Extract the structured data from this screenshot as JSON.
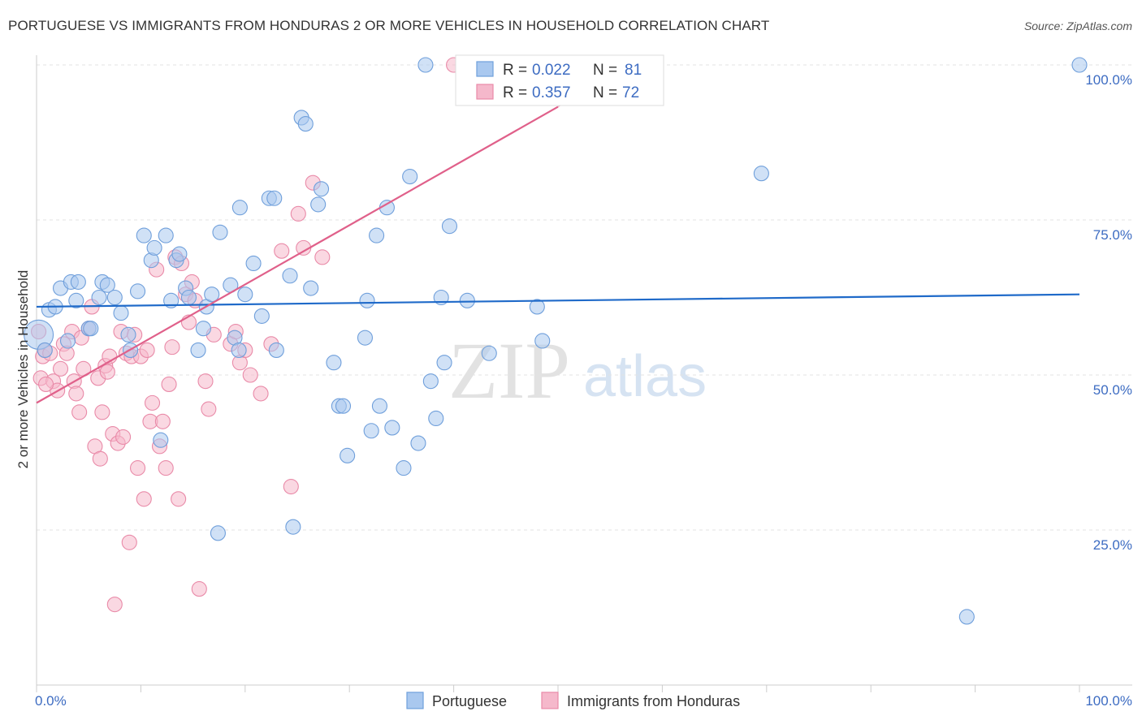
{
  "header": {
    "title": "PORTUGUESE VS IMMIGRANTS FROM HONDURAS 2 OR MORE VEHICLES IN HOUSEHOLD CORRELATION CHART",
    "source": "Source: ZipAtlas.com"
  },
  "watermark": {
    "zip": "ZIP",
    "atlas": "atlas"
  },
  "colors": {
    "blue_fill": "#a9c8ef",
    "blue_stroke": "#6f9fdb",
    "blue_line": "#1f6ac9",
    "pink_fill": "#f5b8cb",
    "pink_stroke": "#e98aa8",
    "pink_line": "#e0608a",
    "grid": "#e3e3e3",
    "tick_text": "#3d6cc2"
  },
  "legend": {
    "rows": [
      {
        "r_label": "R =",
        "r_value": "0.022",
        "n_label": "N =",
        "n_value": "81"
      },
      {
        "r_label": "R =",
        "r_value": "0.357",
        "n_label": "N =",
        "n_value": "72"
      }
    ]
  },
  "chart_data": {
    "type": "scatter",
    "title": "PORTUGUESE VS IMMIGRANTS FROM HONDURAS 2 OR MORE VEHICLES IN HOUSEHOLD CORRELATION CHART",
    "xlabel": "",
    "ylabel": "2 or more Vehicles in Household",
    "xlim": [
      0,
      100
    ],
    "ylim": [
      0,
      100
    ],
    "x_tick_labels": [
      "0.0%",
      "100.0%"
    ],
    "y_ticks": [
      25,
      50,
      75,
      100
    ],
    "y_tick_labels": [
      "25.0%",
      "50.0%",
      "75.0%",
      "100.0%"
    ],
    "grid": true,
    "series": [
      {
        "name": "Portuguese",
        "r": 0.022,
        "n": 81,
        "trend": {
          "x": [
            0,
            100
          ],
          "y": [
            61.0,
            63.0
          ],
          "dashed_extension": false
        },
        "points": [
          [
            0.2,
            56.5
          ],
          [
            0.8,
            54
          ],
          [
            1.2,
            60.5
          ],
          [
            1.8,
            61
          ],
          [
            2.3,
            64
          ],
          [
            3,
            55.5
          ],
          [
            3.3,
            65
          ],
          [
            3.8,
            62
          ],
          [
            4,
            65
          ],
          [
            5,
            57.5
          ],
          [
            5.2,
            57.5
          ],
          [
            6,
            62.5
          ],
          [
            6.3,
            65
          ],
          [
            6.8,
            64.5
          ],
          [
            7.5,
            62.5
          ],
          [
            8.1,
            60
          ],
          [
            8.8,
            56.5
          ],
          [
            9,
            54
          ],
          [
            9.7,
            63.5
          ],
          [
            10.3,
            72.5
          ],
          [
            11,
            68.5
          ],
          [
            11.3,
            70.5
          ],
          [
            11.9,
            39.5
          ],
          [
            12.4,
            72.5
          ],
          [
            12.9,
            62
          ],
          [
            13.4,
            68.5
          ],
          [
            13.7,
            69.5
          ],
          [
            14.3,
            64
          ],
          [
            14.6,
            62.5
          ],
          [
            15.5,
            54
          ],
          [
            16,
            57.5
          ],
          [
            16.3,
            61
          ],
          [
            16.8,
            63
          ],
          [
            17.4,
            24.5
          ],
          [
            17.6,
            73
          ],
          [
            18.6,
            64.5
          ],
          [
            19,
            56
          ],
          [
            19.4,
            54
          ],
          [
            19.5,
            77
          ],
          [
            20,
            63
          ],
          [
            20.8,
            68
          ],
          [
            21.6,
            59.5
          ],
          [
            22.3,
            78.5
          ],
          [
            22.8,
            78.5
          ],
          [
            23,
            54
          ],
          [
            24.3,
            66
          ],
          [
            24.6,
            25.5
          ],
          [
            25.4,
            91.5
          ],
          [
            25.8,
            90.5
          ],
          [
            26.3,
            64
          ],
          [
            27,
            77.5
          ],
          [
            27.3,
            80
          ],
          [
            28.5,
            52
          ],
          [
            29,
            45
          ],
          [
            29.4,
            45
          ],
          [
            29.8,
            37
          ],
          [
            31.5,
            56
          ],
          [
            31.7,
            62
          ],
          [
            32.1,
            41
          ],
          [
            32.6,
            72.5
          ],
          [
            32.9,
            45
          ],
          [
            33.6,
            77
          ],
          [
            34.1,
            41.5
          ],
          [
            35.2,
            35
          ],
          [
            35.8,
            82
          ],
          [
            36.6,
            39
          ],
          [
            37.3,
            100
          ],
          [
            37.8,
            49
          ],
          [
            38.3,
            43
          ],
          [
            38.8,
            62.5
          ],
          [
            39.1,
            52
          ],
          [
            39.6,
            74
          ],
          [
            41.2,
            100
          ],
          [
            41.3,
            62
          ],
          [
            43.4,
            53.5
          ],
          [
            44.6,
            100
          ],
          [
            48,
            61
          ],
          [
            48.5,
            55.5
          ],
          [
            69.5,
            82.5
          ],
          [
            89.2,
            11
          ],
          [
            100,
            100
          ]
        ]
      },
      {
        "name": "Immigrants from Honduras",
        "r": 0.357,
        "n": 72,
        "trend": {
          "x": [
            0,
            100
          ],
          "y": [
            45.5,
            141.0
          ],
          "solid_until_x": 50,
          "dashed_extension": true
        },
        "points": [
          [
            0.2,
            57
          ],
          [
            0.4,
            49.5
          ],
          [
            0.6,
            53
          ],
          [
            0.8,
            54
          ],
          [
            1.3,
            53.5
          ],
          [
            1.6,
            49
          ],
          [
            2,
            47.5
          ],
          [
            2.3,
            51
          ],
          [
            2.6,
            55
          ],
          [
            2.9,
            53.5
          ],
          [
            3.4,
            57
          ],
          [
            3.6,
            49
          ],
          [
            3.8,
            47
          ],
          [
            4.1,
            44
          ],
          [
            4.3,
            56
          ],
          [
            4.5,
            51
          ],
          [
            5,
            57.5
          ],
          [
            5.3,
            61
          ],
          [
            5.6,
            38.5
          ],
          [
            5.9,
            49.5
          ],
          [
            6.1,
            36.5
          ],
          [
            6.3,
            44
          ],
          [
            6.6,
            51.5
          ],
          [
            6.8,
            50.5
          ],
          [
            7,
            53
          ],
          [
            7.3,
            40.5
          ],
          [
            7.5,
            13
          ],
          [
            7.8,
            39
          ],
          [
            8.1,
            57
          ],
          [
            8.3,
            40
          ],
          [
            8.6,
            53.5
          ],
          [
            8.9,
            23
          ],
          [
            9.1,
            53
          ],
          [
            9.4,
            56.5
          ],
          [
            9.7,
            35
          ],
          [
            10,
            53
          ],
          [
            10.3,
            30
          ],
          [
            10.6,
            54
          ],
          [
            10.9,
            42.5
          ],
          [
            11.1,
            45.5
          ],
          [
            11.5,
            67
          ],
          [
            11.8,
            38.5
          ],
          [
            12.1,
            42.5
          ],
          [
            12.4,
            35
          ],
          [
            12.7,
            48.5
          ],
          [
            13,
            54.5
          ],
          [
            13.3,
            69
          ],
          [
            13.6,
            30
          ],
          [
            13.9,
            68
          ],
          [
            14.3,
            63
          ],
          [
            14.6,
            58.5
          ],
          [
            14.9,
            65
          ],
          [
            15.2,
            62
          ],
          [
            15.6,
            15.5
          ],
          [
            16.2,
            49
          ],
          [
            16.5,
            44.5
          ],
          [
            17,
            56.5
          ],
          [
            18.6,
            55
          ],
          [
            19.1,
            57
          ],
          [
            19.5,
            52
          ],
          [
            20,
            54
          ],
          [
            20.5,
            50
          ],
          [
            21.5,
            47
          ],
          [
            22.5,
            55
          ],
          [
            23.5,
            70
          ],
          [
            24.4,
            32
          ],
          [
            25.1,
            76
          ],
          [
            25.6,
            70.5
          ],
          [
            26.5,
            81
          ],
          [
            27.4,
            69
          ],
          [
            0.9,
            48.5
          ],
          [
            40,
            100
          ]
        ]
      }
    ]
  },
  "bottom_legend": {
    "items": [
      "Portuguese",
      "Immigrants from Honduras"
    ]
  }
}
